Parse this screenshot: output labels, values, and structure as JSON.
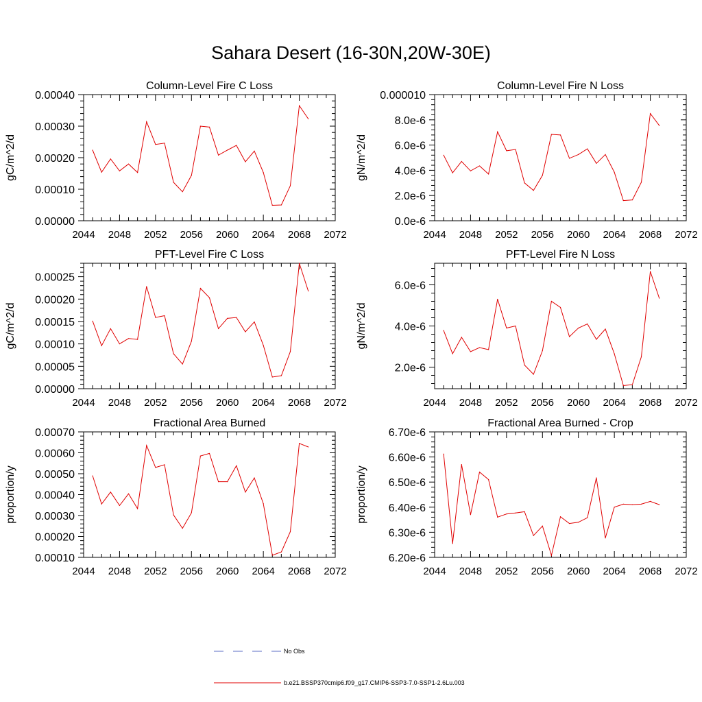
{
  "page_title": "Sahara Desert (16-30N,20W-30E)",
  "legend": {
    "items": [
      {
        "label": "No Obs",
        "color": "#5b6cc4",
        "dash": true
      },
      {
        "label": "b.e21.BSSP370cmip6.f09_g17.CMIP6-SSP3-7.0-SSP1-2.6Lu.003",
        "color": "#e00000",
        "dash": false
      }
    ]
  },
  "chart_data": [
    {
      "type": "line",
      "title": "Column-Level Fire C Loss",
      "ylabel": "gC/m^2/d",
      "xlim": [
        2044,
        2072
      ],
      "ylim": [
        0.0,
        0.0004
      ],
      "xticks": [
        2044,
        2048,
        2052,
        2056,
        2060,
        2064,
        2068,
        2072
      ],
      "xtick_labels": [
        "2044",
        "2048",
        "2052",
        "2056",
        "2060",
        "2064",
        "2068",
        "2072"
      ],
      "yticks": [
        0.0,
        0.0001,
        0.0002,
        0.0003,
        0.0004
      ],
      "ytick_labels": [
        "0.00000",
        "0.00010",
        "0.00020",
        "0.00030",
        "0.00040"
      ],
      "x": [
        2045,
        2046,
        2047,
        2048,
        2049,
        2050,
        2051,
        2052,
        2053,
        2054,
        2055,
        2056,
        2057,
        2058,
        2059,
        2060,
        2061,
        2062,
        2063,
        2064,
        2065,
        2066,
        2067,
        2068,
        2069
      ],
      "series": [
        {
          "color": "#e00000",
          "values": [
            0.000224,
            0.000154,
            0.000196,
            0.000158,
            0.00018,
            0.000153,
            0.000314,
            0.000242,
            0.000246,
            0.000122,
            9.2e-05,
            0.000144,
            0.0003,
            0.000297,
            0.000208,
            0.000224,
            0.000239,
            0.000187,
            0.000221,
            0.000153,
            4.9e-05,
            5e-05,
            0.000111,
            0.000365,
            0.000323
          ]
        }
      ]
    },
    {
      "type": "line",
      "title": "Column-Level Fire N Loss",
      "ylabel": "gN/m^2/d",
      "xlim": [
        2044,
        2072
      ],
      "ylim": [
        0.0,
        1e-05
      ],
      "xticks": [
        2044,
        2048,
        2052,
        2056,
        2060,
        2064,
        2068,
        2072
      ],
      "xtick_labels": [
        "2044",
        "2048",
        "2052",
        "2056",
        "2060",
        "2064",
        "2068",
        "2072"
      ],
      "yticks": [
        0.0,
        2e-06,
        4e-06,
        6e-06,
        8e-06,
        1e-05
      ],
      "ytick_labels": [
        "0.0e-6",
        "2.0e-6",
        "4.0e-6",
        "6.0e-6",
        "8.0e-6",
        "0.000010"
      ],
      "x": [
        2045,
        2046,
        2047,
        2048,
        2049,
        2050,
        2051,
        2052,
        2053,
        2054,
        2055,
        2056,
        2057,
        2058,
        2059,
        2060,
        2061,
        2062,
        2063,
        2064,
        2065,
        2066,
        2067,
        2068,
        2069
      ],
      "series": [
        {
          "color": "#e00000",
          "values": [
            5.2e-06,
            3.8e-06,
            4.7e-06,
            3.95e-06,
            4.35e-06,
            3.7e-06,
            7.05e-06,
            5.55e-06,
            5.65e-06,
            3e-06,
            2.4e-06,
            3.6e-06,
            6.85e-06,
            6.8e-06,
            4.95e-06,
            5.25e-06,
            5.7e-06,
            4.55e-06,
            5.25e-06,
            3.85e-06,
            1.6e-06,
            1.65e-06,
            3.05e-06,
            8.5e-06,
            7.55e-06
          ]
        }
      ]
    },
    {
      "type": "line",
      "title": "PFT-Level Fire C Loss",
      "ylabel": "gC/m^2/d",
      "xlim": [
        2044,
        2072
      ],
      "ylim": [
        0.0,
        0.00028
      ],
      "xticks": [
        2044,
        2048,
        2052,
        2056,
        2060,
        2064,
        2068,
        2072
      ],
      "xtick_labels": [
        "2044",
        "2048",
        "2052",
        "2056",
        "2060",
        "2064",
        "2068",
        "2072"
      ],
      "yticks": [
        0.0,
        5e-05,
        0.0001,
        0.00015,
        0.0002,
        0.00025
      ],
      "ytick_labels": [
        "0.00000",
        "0.00005",
        "0.00010",
        "0.00015",
        "0.00020",
        "0.00025"
      ],
      "x": [
        2045,
        2046,
        2047,
        2048,
        2049,
        2050,
        2051,
        2052,
        2053,
        2054,
        2055,
        2056,
        2057,
        2058,
        2059,
        2060,
        2061,
        2062,
        2063,
        2064,
        2065,
        2066,
        2067,
        2068,
        2069
      ],
      "series": [
        {
          "color": "#e00000",
          "values": [
            0.000151,
            9.6e-05,
            0.000134,
            0.0001,
            0.000112,
            0.00011,
            0.000228,
            0.000159,
            0.000163,
            7.8e-05,
            5.5e-05,
            0.000106,
            0.000224,
            0.000203,
            0.000134,
            0.000157,
            0.000159,
            0.000127,
            0.000149,
            9.7e-05,
            2.6e-05,
            2.9e-05,
            8.3e-05,
            0.00028,
            0.000218
          ]
        }
      ]
    },
    {
      "type": "line",
      "title": "PFT-Level Fire N Loss",
      "ylabel": "gN/m^2/d",
      "xlim": [
        2044,
        2072
      ],
      "ylim": [
        9.5e-07,
        7.05e-06
      ],
      "xticks": [
        2044,
        2048,
        2052,
        2056,
        2060,
        2064,
        2068,
        2072
      ],
      "xtick_labels": [
        "2044",
        "2048",
        "2052",
        "2056",
        "2060",
        "2064",
        "2068",
        "2072"
      ],
      "yticks": [
        2e-06,
        4e-06,
        6e-06
      ],
      "ytick_labels": [
        "2.0e-6",
        "4.0e-6",
        "6.0e-6"
      ],
      "x": [
        2045,
        2046,
        2047,
        2048,
        2049,
        2050,
        2051,
        2052,
        2053,
        2054,
        2055,
        2056,
        2057,
        2058,
        2059,
        2060,
        2061,
        2062,
        2063,
        2064,
        2065,
        2066,
        2067,
        2068,
        2069
      ],
      "series": [
        {
          "color": "#e00000",
          "values": [
            3.78e-06,
            2.65e-06,
            3.45e-06,
            2.75e-06,
            2.95e-06,
            2.85e-06,
            5.3e-06,
            3.9e-06,
            4e-06,
            2.1e-06,
            1.65e-06,
            2.8e-06,
            5.2e-06,
            4.9e-06,
            3.48e-06,
            3.9e-06,
            4.1e-06,
            3.35e-06,
            3.85e-06,
            2.65e-06,
            1.1e-06,
            1.15e-06,
            2.5e-06,
            6.65e-06,
            5.35e-06
          ]
        }
      ]
    },
    {
      "type": "line",
      "title": "Fractional Area Burned",
      "ylabel": "proportion/y",
      "xlim": [
        2044,
        2072
      ],
      "ylim": [
        0.0001,
        0.0007
      ],
      "xticks": [
        2044,
        2048,
        2052,
        2056,
        2060,
        2064,
        2068,
        2072
      ],
      "xtick_labels": [
        "2044",
        "2048",
        "2052",
        "2056",
        "2060",
        "2064",
        "2068",
        "2072"
      ],
      "yticks": [
        0.0001,
        0.0002,
        0.0003,
        0.0004,
        0.0005,
        0.0006,
        0.0007
      ],
      "ytick_labels": [
        "0.00010",
        "0.00020",
        "0.00030",
        "0.00040",
        "0.00050",
        "0.00060",
        "0.00070"
      ],
      "x": [
        2045,
        2046,
        2047,
        2048,
        2049,
        2050,
        2051,
        2052,
        2053,
        2054,
        2055,
        2056,
        2057,
        2058,
        2059,
        2060,
        2061,
        2062,
        2063,
        2064,
        2065,
        2066,
        2067,
        2068,
        2069
      ],
      "series": [
        {
          "color": "#e00000",
          "values": [
            0.00049,
            0.000355,
            0.000412,
            0.000348,
            0.000404,
            0.000333,
            0.000635,
            0.00053,
            0.000543,
            0.000303,
            0.000239,
            0.000313,
            0.000585,
            0.000597,
            0.000462,
            0.000462,
            0.000538,
            0.000412,
            0.00048,
            0.000357,
            0.00011,
            0.000126,
            0.000223,
            0.000645,
            0.000628
          ]
        }
      ]
    },
    {
      "type": "line",
      "title": "Fractional Area Burned - Crop",
      "ylabel": "proportion/y",
      "xlim": [
        2044,
        2072
      ],
      "ylim": [
        6.2e-06,
        6.7e-06
      ],
      "xticks": [
        2044,
        2048,
        2052,
        2056,
        2060,
        2064,
        2068,
        2072
      ],
      "xtick_labels": [
        "2044",
        "2048",
        "2052",
        "2056",
        "2060",
        "2064",
        "2068",
        "2072"
      ],
      "yticks": [
        6.2e-06,
        6.3e-06,
        6.4e-06,
        6.5e-06,
        6.6e-06,
        6.7e-06
      ],
      "ytick_labels": [
        "6.20e-6",
        "6.30e-6",
        "6.40e-6",
        "6.50e-6",
        "6.60e-6",
        "6.70e-6"
      ],
      "x": [
        2045,
        2046,
        2047,
        2048,
        2049,
        2050,
        2051,
        2052,
        2053,
        2054,
        2055,
        2056,
        2057,
        2058,
        2059,
        2060,
        2061,
        2062,
        2063,
        2064,
        2065,
        2066,
        2067,
        2068,
        2069
      ],
      "series": [
        {
          "color": "#e00000",
          "values": [
            6.612e-06,
            6.255e-06,
            6.57e-06,
            6.37e-06,
            6.54e-06,
            6.51e-06,
            6.36e-06,
            6.373e-06,
            6.377e-06,
            6.382e-06,
            6.287e-06,
            6.325e-06,
            6.208e-06,
            6.362e-06,
            6.335e-06,
            6.34e-06,
            6.358e-06,
            6.517e-06,
            6.277e-06,
            6.4e-06,
            6.412e-06,
            6.41e-06,
            6.412e-06,
            6.423e-06,
            6.41e-06
          ]
        }
      ]
    }
  ]
}
